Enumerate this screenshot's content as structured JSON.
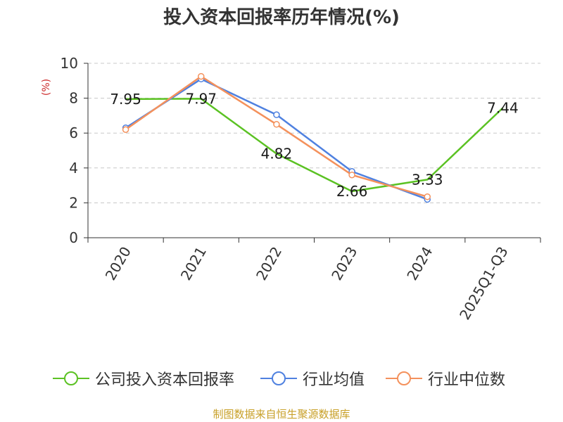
{
  "title": "投入资本回报率历年情况(%)",
  "source": "制图数据来自恒生聚源数据库",
  "chart_data": {
    "type": "line",
    "title": "投入资本回报率历年情况(%)",
    "xlabel": "",
    "ylabel": "(%)",
    "ylim": [
      0,
      10
    ],
    "yticks": [
      "0",
      "2",
      "4",
      "6",
      "8",
      "10"
    ],
    "grid": true,
    "legend_position": "bottom",
    "categories": [
      "2020",
      "2021",
      "2022",
      "2023",
      "2024",
      "2025Q1-Q3"
    ],
    "series": [
      {
        "name": "公司投入资本回报率",
        "color": "#5bc223",
        "values": [
          7.95,
          7.97,
          4.82,
          2.66,
          3.33,
          7.44
        ],
        "labels": [
          "7.95",
          "7.97",
          "4.82",
          "2.66",
          "3.33",
          "7.44"
        ],
        "show_markers": false
      },
      {
        "name": "行业均值",
        "color": "#4f81e0",
        "values": [
          6.3,
          9.1,
          7.05,
          3.8,
          2.2,
          null
        ],
        "show_markers": true
      },
      {
        "name": "行业中位数",
        "color": "#f4915c",
        "values": [
          6.2,
          9.25,
          6.5,
          3.6,
          2.35,
          null
        ],
        "show_markers": true
      }
    ]
  }
}
